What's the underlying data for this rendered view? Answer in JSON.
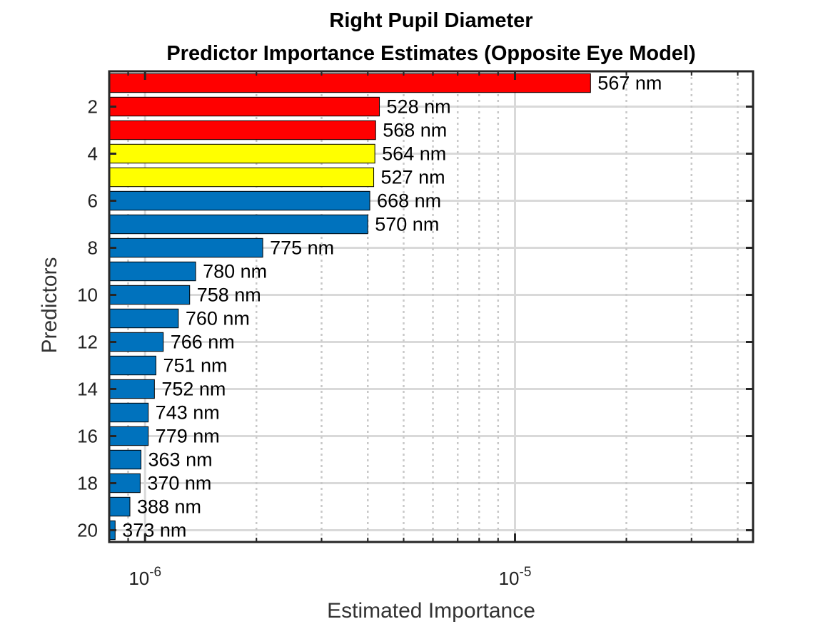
{
  "chart_data": {
    "type": "bar",
    "orientation": "horizontal",
    "title": [
      "Right Pupil Diameter",
      "Predictor Importance Estimates (Opposite Eye Model)"
    ],
    "xlabel": "Estimated Importance",
    "ylabel": "Predictors",
    "xscale": "log",
    "xlim": [
      8e-07,
      4.4e-05
    ],
    "ylim": [
      0.5,
      20.5
    ],
    "grid": true,
    "x_ticks": [
      {
        "value": 1e-06,
        "base": "10",
        "exp": "-6"
      },
      {
        "value": 1e-05,
        "base": "10",
        "exp": "-5"
      }
    ],
    "y_ticks": [
      2,
      4,
      6,
      8,
      10,
      12,
      14,
      16,
      18,
      20
    ],
    "colors": {
      "top": "#ff0000",
      "mid": "#ffff00",
      "rest": "#0072bd",
      "grid": "#d9d9d9",
      "axis": "#262626"
    },
    "bars": [
      {
        "predictor": 1,
        "value": 1.6e-05,
        "label": "567 nm",
        "color_group": "top"
      },
      {
        "predictor": 2,
        "value": 4.3e-06,
        "label": "528 nm",
        "color_group": "top"
      },
      {
        "predictor": 3,
        "value": 4.2e-06,
        "label": "568 nm",
        "color_group": "top"
      },
      {
        "predictor": 4,
        "value": 4.18e-06,
        "label": "564 nm",
        "color_group": "mid"
      },
      {
        "predictor": 5,
        "value": 4.15e-06,
        "label": "527 nm",
        "color_group": "mid"
      },
      {
        "predictor": 6,
        "value": 4.05e-06,
        "label": "668 nm",
        "color_group": "rest"
      },
      {
        "predictor": 7,
        "value": 4e-06,
        "label": "570 nm",
        "color_group": "rest"
      },
      {
        "predictor": 8,
        "value": 2.08e-06,
        "label": "775 nm",
        "color_group": "rest"
      },
      {
        "predictor": 9,
        "value": 1.37e-06,
        "label": "780 nm",
        "color_group": "rest"
      },
      {
        "predictor": 10,
        "value": 1.32e-06,
        "label": "758 nm",
        "color_group": "rest"
      },
      {
        "predictor": 11,
        "value": 1.23e-06,
        "label": "760 nm",
        "color_group": "rest"
      },
      {
        "predictor": 12,
        "value": 1.12e-06,
        "label": "766 nm",
        "color_group": "rest"
      },
      {
        "predictor": 13,
        "value": 1.07e-06,
        "label": "751 nm",
        "color_group": "rest"
      },
      {
        "predictor": 14,
        "value": 1.06e-06,
        "label": "752 nm",
        "color_group": "rest"
      },
      {
        "predictor": 15,
        "value": 1.02e-06,
        "label": "743 nm",
        "color_group": "rest"
      },
      {
        "predictor": 16,
        "value": 1.02e-06,
        "label": "779 nm",
        "color_group": "rest"
      },
      {
        "predictor": 17,
        "value": 9.75e-07,
        "label": "363 nm",
        "color_group": "rest"
      },
      {
        "predictor": 18,
        "value": 9.7e-07,
        "label": "370 nm",
        "color_group": "rest"
      },
      {
        "predictor": 19,
        "value": 9.1e-07,
        "label": "388 nm",
        "color_group": "rest"
      },
      {
        "predictor": 20,
        "value": 8.3e-07,
        "label": "373 nm",
        "color_group": "rest"
      }
    ]
  }
}
